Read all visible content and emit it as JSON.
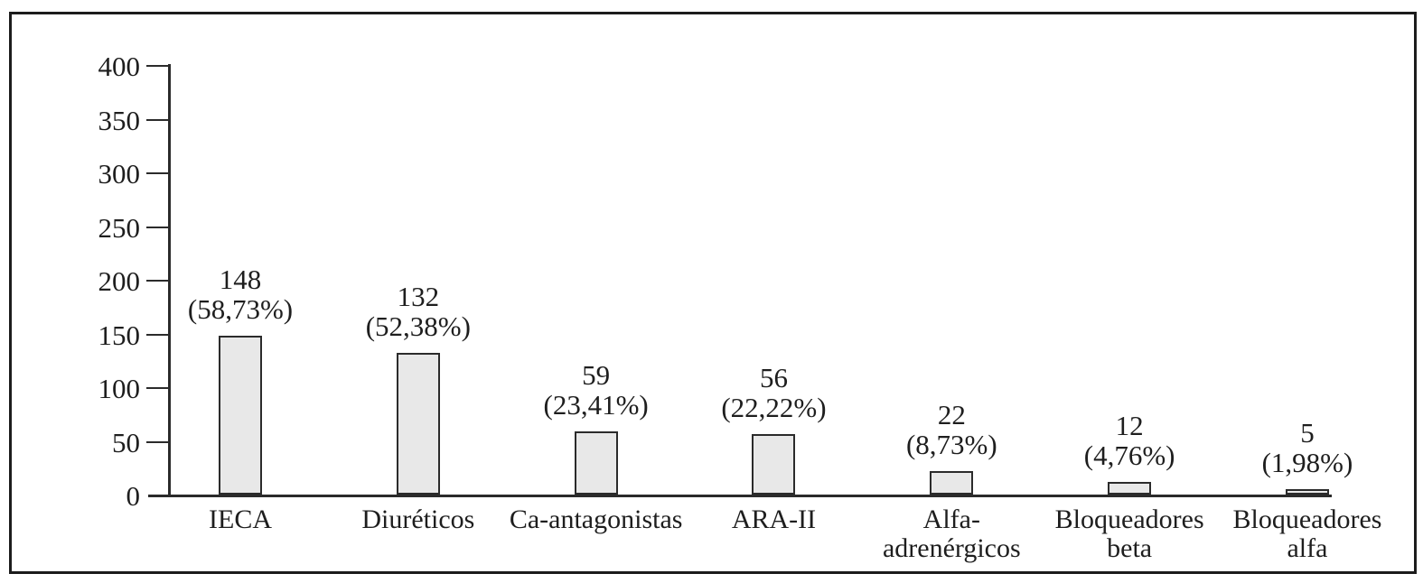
{
  "chart_data": {
    "type": "bar",
    "title": "",
    "xlabel": "",
    "ylabel": "",
    "categories": [
      "IECA",
      "Diuréticos",
      "Ca-antagonistas",
      "ARA-II",
      "Alfa-\nadrenérgicos",
      "Bloqueadores\nbeta",
      "Bloqueadores\nalfa"
    ],
    "values": [
      148,
      132,
      59,
      56,
      22,
      12,
      5
    ],
    "percentages": [
      "58,73%",
      "52,38%",
      "23,41%",
      "22,22%",
      "8,73%",
      "4,76%",
      "1,98%"
    ],
    "bar_labels": [
      "148\n(58,73%)",
      "132\n(52,38%)",
      "59\n(23,41%)",
      "56\n(22,22%)",
      "22\n(8,73%)",
      "12\n(4,76%)",
      "5\n(1,98%)"
    ],
    "ylim": [
      0,
      400
    ],
    "yticks": [
      0,
      50,
      100,
      150,
      200,
      250,
      300,
      350,
      400
    ],
    "grid": false,
    "legend": false,
    "colors": {
      "bar_fill": "#e8e8e8",
      "bar_border": "#2b2b2b",
      "axis": "#2b2b2b",
      "text": "#1e1e1e",
      "frame_border": "#1c1c1c",
      "background": "#ffffff"
    }
  }
}
